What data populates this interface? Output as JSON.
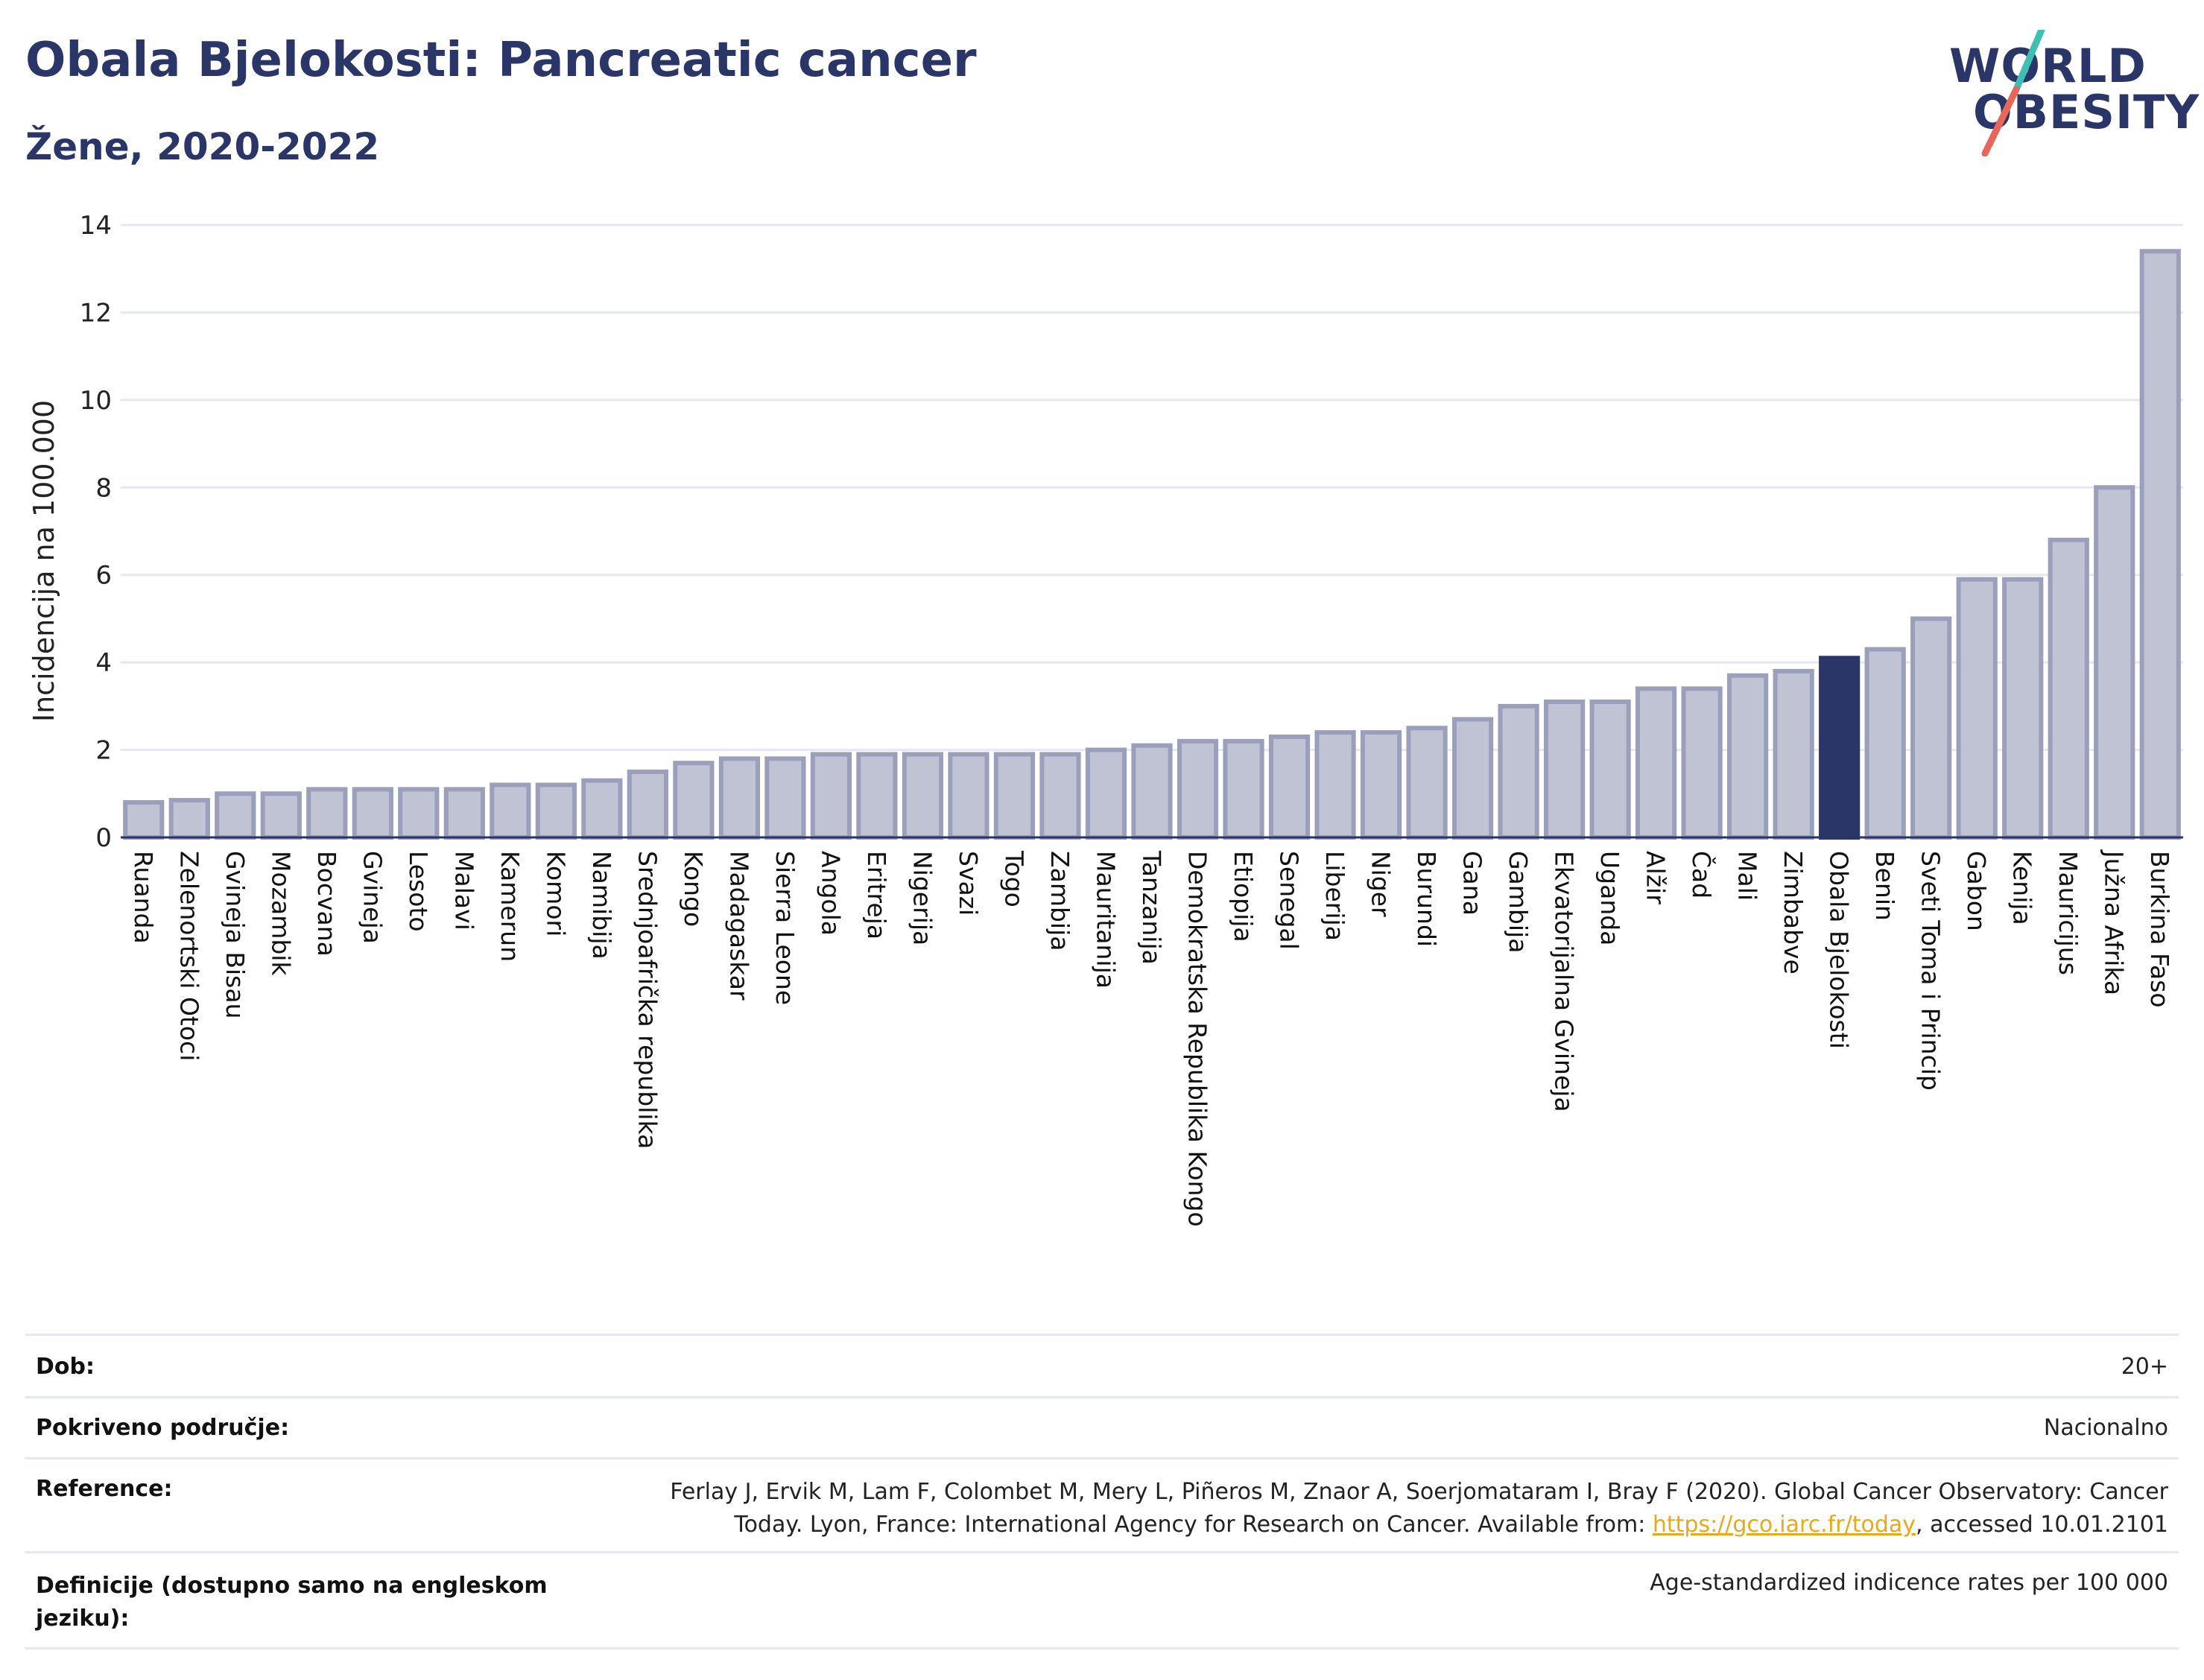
{
  "header": {
    "title": "Obala Bjelokosti: Pancreatic cancer",
    "subtitle": "Žene, 2020-2022"
  },
  "logo": {
    "line1": "WORLD",
    "line2": "OBESITY",
    "slash_color_top": "#3fbfb4",
    "slash_color_bottom": "#e8675a"
  },
  "colors": {
    "bar_fill": "#bfc3d3",
    "bar_stroke": "#9aa0bb",
    "highlight": "#2b3668",
    "grid": "#e6e8f0"
  },
  "chart_data": {
    "type": "bar",
    "title": "Obala Bjelokosti: Pancreatic cancer",
    "ylabel": "Incidencija na 100.000",
    "xlabel": "",
    "ylim": [
      0,
      14
    ],
    "yticks": [
      0,
      2,
      4,
      6,
      8,
      10,
      12,
      14
    ],
    "grid": true,
    "highlight": "Obala Bjelokosti",
    "categories": [
      "Ruanda",
      "Zelenortski Otoci",
      "Gvineja Bisau",
      "Mozambik",
      "Bocvana",
      "Gvineja",
      "Lesoto",
      "Malavi",
      "Kamerun",
      "Komori",
      "Namibija",
      "Srednjoafrička republika",
      "Kongo",
      "Madagaskar",
      "Sierra Leone",
      "Angola",
      "Eritreja",
      "Nigerija",
      "Svazi",
      "Togo",
      "Zambija",
      "Mauritanija",
      "Tanzanija",
      "Demokratska Republika Kongo",
      "Etiopija",
      "Senegal",
      "Liberija",
      "Niger",
      "Burundi",
      "Gana",
      "Gambija",
      "Ekvatorijalna Gvineja",
      "Uganda",
      "Alžir",
      "Čad",
      "Mali",
      "Zimbabve",
      "Obala Bjelokosti",
      "Benin",
      "Sveti Toma i Princip",
      "Gabon",
      "Kenija",
      "Mauricijus",
      "Južna Afrika",
      "Burkina Faso"
    ],
    "values": [
      0.8,
      0.85,
      1.0,
      1.0,
      1.1,
      1.1,
      1.1,
      1.1,
      1.2,
      1.2,
      1.3,
      1.5,
      1.7,
      1.8,
      1.8,
      1.9,
      1.9,
      1.9,
      1.9,
      1.9,
      1.9,
      2.0,
      2.1,
      2.2,
      2.2,
      2.3,
      2.4,
      2.4,
      2.5,
      2.7,
      3.0,
      3.1,
      3.1,
      3.4,
      3.4,
      3.7,
      3.8,
      4.1,
      4.3,
      5.0,
      5.9,
      5.9,
      6.8,
      8.0,
      13.4
    ]
  },
  "info": {
    "dob_label": "Dob:",
    "dob_value": "20+",
    "coverage_label": "Pokriveno područje:",
    "coverage_value": "Nacionalno",
    "reference_label": "Reference:",
    "reference_line1": "Ferlay J, Ervik M, Lam F, Colombet M, Mery L, Piñeros M, Znaor A, Soerjomataram I, Bray F (2020). Global Cancer Observatory: Cancer",
    "reference_line2_pre": "Today. Lyon, France: International Agency for Research on Cancer. Available from: ",
    "reference_link": "https://gco.iarc.fr/today",
    "reference_line2_post": ", accessed 10.01.2101",
    "definitions_label_1": "Definicije (dostupno samo na engleskom",
    "definitions_label_2": "jeziku):",
    "definitions_value": "Age-standardized indicence rates per 100 000"
  }
}
